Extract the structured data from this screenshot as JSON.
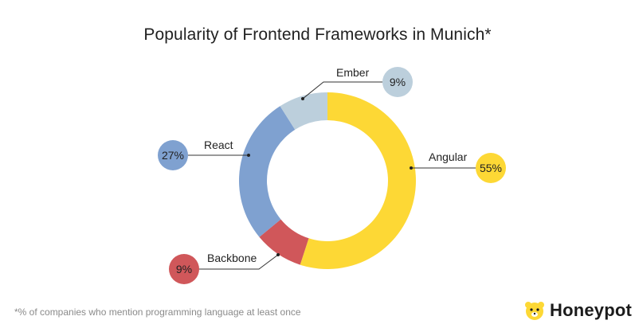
{
  "chart_data": {
    "type": "donut",
    "title": "Popularity of Frontend Frameworks in Munich*",
    "slices": [
      {
        "label": "Angular",
        "value": 55,
        "display": "55%",
        "color": "#fdd835"
      },
      {
        "label": "Backbone",
        "value": 9,
        "display": "9%",
        "color": "#d0575a"
      },
      {
        "label": "React",
        "value": 27,
        "display": "27%",
        "color": "#7fa1d0"
      },
      {
        "label": "Ember",
        "value": 9,
        "display": "9%",
        "color": "#bccfdc"
      }
    ]
  },
  "footnote": "*% of companies who mention programming language at least once",
  "brand": {
    "name": "Honeypot",
    "icon": "bear-logo-icon",
    "color": "#fdd835"
  }
}
